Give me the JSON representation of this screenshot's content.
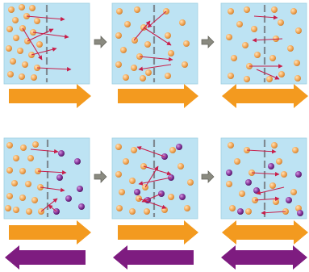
{
  "diagram": {
    "type": "diffusion-across-membrane",
    "colors": {
      "chamber": "#bde3f3",
      "membrane": "#7f8a92",
      "orange_particle": "#f2a85a",
      "purple_particle": "#7b2e8c",
      "red_arrow": "#c81e4a",
      "orange_arrow": "#f39a1f",
      "purple_arrow": "#7e1c80",
      "step_arrow": "#8a8a80"
    },
    "rows": [
      {
        "name": "single-solute",
        "stages": [
          {
            "stage": 1,
            "orange_left": 21,
            "orange_right": 0,
            "purple_left": 0,
            "purple_right": 0,
            "net_orange": "right",
            "net_purple": "none"
          },
          {
            "stage": 2,
            "orange_left": 14,
            "orange_right": 7,
            "purple_left": 0,
            "purple_right": 0,
            "net_orange": "right",
            "net_purple": "none"
          },
          {
            "stage": 3,
            "orange_left": 11,
            "orange_right": 11,
            "purple_left": 0,
            "purple_right": 0,
            "net_orange": "both",
            "net_purple": "none"
          }
        ]
      },
      {
        "name": "two-solutes",
        "stages": [
          {
            "stage": 1,
            "orange_left": 18,
            "orange_right": 0,
            "purple_left": 0,
            "purple_right": 7,
            "net_orange": "right",
            "net_purple": "left"
          },
          {
            "stage": 2,
            "orange_left": 12,
            "orange_right": 6,
            "purple_left": 2,
            "purple_right": 5,
            "net_orange": "right",
            "net_purple": "left"
          },
          {
            "stage": 3,
            "orange_left": 9,
            "orange_right": 9,
            "purple_left": 4,
            "purple_right": 4,
            "net_orange": "both",
            "net_purple": "both"
          }
        ]
      }
    ],
    "step_arrows": "gray-right"
  }
}
